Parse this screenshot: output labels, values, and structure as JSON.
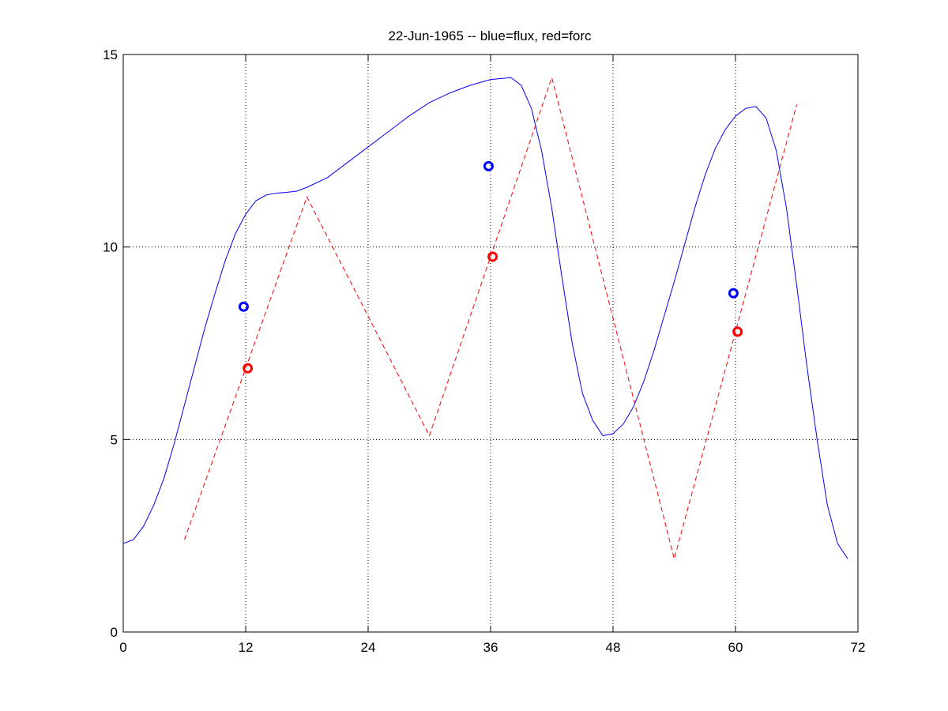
{
  "chart_data": {
    "type": "line",
    "title": "22-Jun-1965 -- blue=flux, red=forc",
    "xlabel": "",
    "ylabel": "",
    "xlim": [
      0,
      72
    ],
    "ylim": [
      0,
      15
    ],
    "xticks": [
      0,
      12,
      24,
      36,
      48,
      60,
      72
    ],
    "yticks": [
      0,
      5,
      10,
      15
    ],
    "grid": "dotted, at x = 12, 36, 60 and y = 5, 10",
    "colors": {
      "flux": "#0000ff",
      "forc": "#ff0000",
      "axes": "#000000",
      "grid": "#000000"
    },
    "series": [
      {
        "style": "solid",
        "color": "#0000ff",
        "x": [
          0,
          1,
          2,
          3,
          4,
          5,
          6,
          7,
          8,
          9,
          10,
          11,
          12,
          13,
          14,
          15,
          16,
          17,
          18,
          20,
          22,
          24,
          26,
          28,
          30,
          32,
          34,
          36,
          38,
          39,
          40,
          41,
          42,
          43,
          44,
          45,
          46,
          47,
          48,
          49,
          50,
          51,
          52,
          53,
          54,
          55,
          56,
          57,
          58,
          59,
          60,
          61,
          62,
          63,
          64,
          65,
          66,
          67,
          68,
          69,
          70,
          71
        ],
        "y": [
          2.3,
          2.4,
          2.75,
          3.3,
          4.0,
          4.9,
          5.9,
          6.9,
          7.9,
          8.8,
          9.65,
          10.35,
          10.85,
          11.2,
          11.35,
          11.4,
          11.42,
          11.45,
          11.55,
          11.8,
          12.2,
          12.6,
          13.0,
          13.4,
          13.75,
          14.0,
          14.2,
          14.35,
          14.4,
          14.2,
          13.6,
          12.5,
          11.0,
          9.2,
          7.5,
          6.2,
          5.5,
          5.1,
          5.15,
          5.4,
          5.85,
          6.5,
          7.3,
          8.2,
          9.1,
          10.05,
          11.0,
          11.85,
          12.55,
          13.05,
          13.4,
          13.6,
          13.65,
          13.35,
          12.5,
          11.0,
          9.0,
          6.9,
          5.0,
          3.3,
          2.3,
          1.9
        ]
      },
      {
        "style": "dashed",
        "color": "#ff0000",
        "x": [
          6,
          18,
          30,
          42,
          54,
          66
        ],
        "y": [
          2.4,
          11.3,
          5.1,
          14.4,
          1.9,
          13.7
        ]
      }
    ],
    "markers": [
      {
        "color": "#0000ff",
        "x": 11.8,
        "y": 8.45
      },
      {
        "color": "#0000ff",
        "x": 35.8,
        "y": 12.1
      },
      {
        "color": "#0000ff",
        "x": 59.8,
        "y": 8.8
      },
      {
        "color": "#ff0000",
        "x": 12.2,
        "y": 6.85
      },
      {
        "color": "#ff0000",
        "x": 36.2,
        "y": 9.75
      },
      {
        "color": "#ff0000",
        "x": 60.2,
        "y": 7.8
      }
    ]
  }
}
